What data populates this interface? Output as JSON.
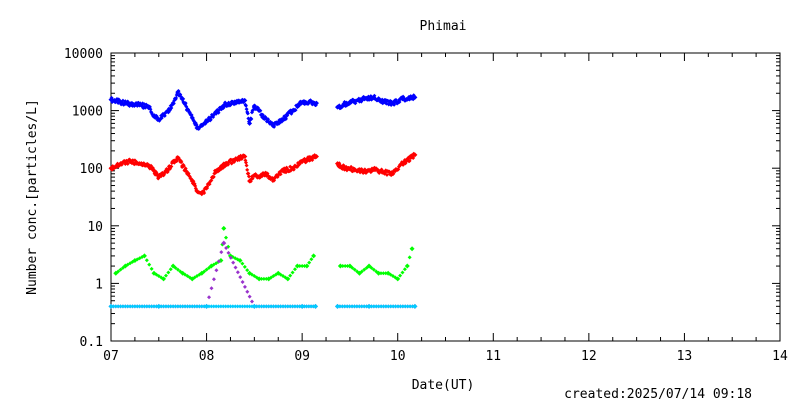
{
  "chart_data": {
    "type": "scatter",
    "title": "Phimai",
    "xlabel": "Date(UT)",
    "ylabel": "Number conc.[particles/L]",
    "footer": "created:2025/07/14 09:18",
    "x_scale": "linear",
    "y_scale": "log",
    "xlim": [
      7,
      14
    ],
    "ylim": [
      0.1,
      10000
    ],
    "x_ticks": [
      7,
      8,
      9,
      10,
      11,
      12,
      13,
      14
    ],
    "x_tick_labels": [
      "07",
      "08",
      "09",
      "10",
      "11",
      "12",
      "13",
      "14"
    ],
    "y_ticks": [
      0.1,
      1,
      10,
      100,
      1000,
      10000
    ],
    "y_tick_labels": [
      "0.1",
      "1",
      "10",
      "100",
      "1000",
      "10000"
    ],
    "grid": false,
    "legend": "none",
    "data_gaps": [
      [
        9.15,
        9.37
      ],
      [
        10.18,
        14
      ]
    ],
    "series": [
      {
        "color": "#0000ff",
        "marker": "diamond",
        "x": [
          7.0,
          7.1,
          7.2,
          7.3,
          7.4,
          7.45,
          7.5,
          7.6,
          7.65,
          7.7,
          7.75,
          7.8,
          7.85,
          7.9,
          7.95,
          8.0,
          8.1,
          8.2,
          8.3,
          8.4,
          8.45,
          8.5,
          8.55,
          8.6,
          8.7,
          8.8,
          8.9,
          9.0,
          9.1,
          9.15,
          9.37,
          9.45,
          9.55,
          9.65,
          9.75,
          9.85,
          9.95,
          10.05,
          10.18
        ],
        "y": [
          1550,
          1400,
          1300,
          1250,
          1150,
          800,
          700,
          950,
          1350,
          2100,
          1600,
          1050,
          750,
          500,
          550,
          650,
          900,
          1300,
          1400,
          1500,
          600,
          1200,
          1000,
          750,
          550,
          700,
          1000,
          1400,
          1400,
          1350,
          1150,
          1300,
          1450,
          1600,
          1700,
          1450,
          1350,
          1600,
          1700
        ]
      },
      {
        "color": "#ff0000",
        "marker": "diamond",
        "x": [
          7.0,
          7.1,
          7.2,
          7.3,
          7.4,
          7.45,
          7.5,
          7.6,
          7.65,
          7.7,
          7.75,
          7.8,
          7.85,
          7.9,
          7.95,
          8.0,
          8.1,
          8.2,
          8.3,
          8.4,
          8.45,
          8.5,
          8.55,
          8.6,
          8.7,
          8.8,
          8.9,
          9.0,
          9.1,
          9.15,
          9.37,
          9.45,
          9.55,
          9.65,
          9.75,
          9.85,
          9.95,
          10.05,
          10.18
        ],
        "y": [
          100,
          120,
          130,
          120,
          110,
          90,
          70,
          95,
          130,
          150,
          110,
          80,
          60,
          40,
          36,
          45,
          90,
          120,
          140,
          160,
          60,
          75,
          70,
          80,
          65,
          90,
          100,
          130,
          150,
          160,
          120,
          100,
          95,
          90,
          95,
          85,
          80,
          120,
          170
        ]
      },
      {
        "color": "#00ff00",
        "marker": "diamond",
        "x": [
          7.05,
          7.15,
          7.25,
          7.35,
          7.45,
          7.55,
          7.65,
          7.75,
          7.85,
          7.95,
          8.05,
          8.15,
          8.18,
          8.25,
          8.35,
          8.45,
          8.55,
          8.65,
          8.75,
          8.85,
          8.95,
          9.05,
          9.12,
          9.4,
          9.5,
          9.6,
          9.7,
          9.8,
          9.9,
          10.0,
          10.1,
          10.15
        ],
        "y": [
          1.5,
          2,
          2.5,
          3,
          1.5,
          1.2,
          2,
          1.5,
          1.2,
          1.5,
          2,
          2.5,
          9,
          3,
          2.5,
          1.5,
          1.2,
          1.2,
          1.5,
          1.2,
          2,
          2,
          3,
          2,
          2,
          1.5,
          2,
          1.5,
          1.5,
          1.2,
          2,
          4
        ]
      },
      {
        "color": "#9933cc",
        "marker": "diamond",
        "x": [
          7.0,
          7.5,
          8.0,
          8.18,
          8.5,
          9.0,
          9.14,
          9.37,
          9.7,
          10.18
        ],
        "y": [
          0.4,
          0.4,
          0.4,
          5,
          0.4,
          0.4,
          0.4,
          0.4,
          0.4,
          0.4
        ]
      },
      {
        "color": "#00ccff",
        "marker": "diamond",
        "x": [
          7.0,
          7.5,
          8.0,
          8.5,
          9.0,
          9.14,
          9.37,
          9.7,
          10.18
        ],
        "y": [
          0.4,
          0.4,
          0.4,
          0.4,
          0.4,
          0.4,
          0.4,
          0.4,
          0.4
        ]
      }
    ]
  }
}
